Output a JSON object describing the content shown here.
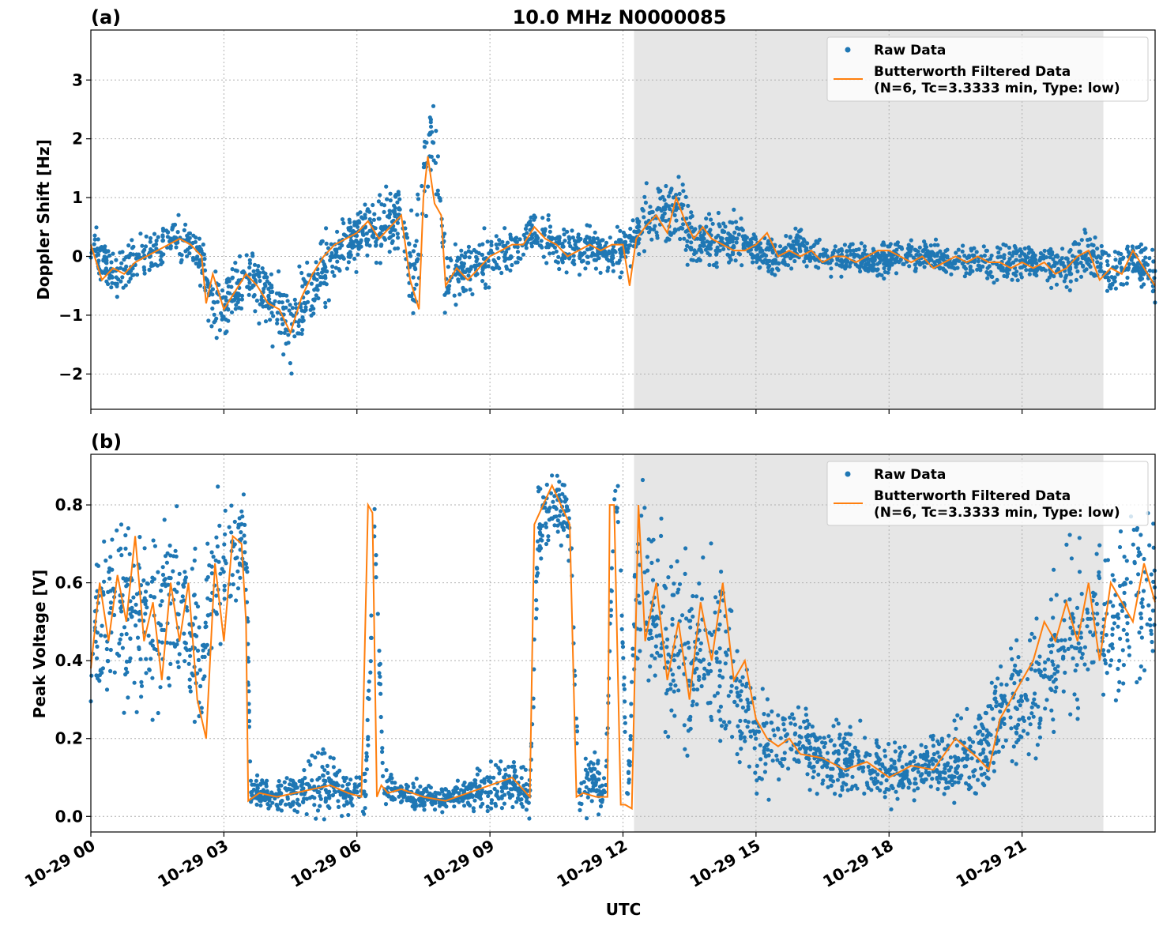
{
  "figure": {
    "title": "10.0 MHz N0000085",
    "xlabel": "UTC",
    "x_tick_labels": [
      "10-29 00",
      "10-29 03",
      "10-29 06",
      "10-29 09",
      "10-29 12",
      "10-29 15",
      "10-29 18",
      "10-29 21"
    ]
  },
  "legend": {
    "raw_label": "Raw Data",
    "filtered_label_line1": "Butterworth Filtered Data",
    "filtered_label_line2": "(N=6, Tc=3.3333 min, Type: low)"
  },
  "colors": {
    "raw": "#1f77b4",
    "filtered": "#ff7f0e",
    "shade": "#e6e6e6"
  },
  "chart_data": [
    {
      "panel": "(a)",
      "type": "scatter",
      "title": "10.0 MHz N0000085",
      "xlabel": "",
      "ylabel": "Doppler Shift [Hz]",
      "x_unit": "hours after 10-29 00:00 UTC",
      "xlim": [
        "10-29 00:00",
        "10-29 24:00"
      ],
      "ylim": [
        -2.6,
        3.85
      ],
      "yticks": [
        -2,
        -1,
        0,
        1,
        2,
        3
      ],
      "ytick_labels": [
        "−2",
        "−1",
        "0",
        "1",
        "2",
        "3"
      ],
      "grid": true,
      "legend_position": "top-right",
      "shaded_span": [
        "10-29 12:15",
        "10-29 22:50"
      ],
      "series": [
        {
          "name": "Raw Data",
          "style": "points",
          "x": [
            0,
            0.5,
            1,
            1.5,
            2,
            2.5,
            2.7,
            3,
            3.5,
            4,
            4.5,
            5,
            5.5,
            6,
            6.5,
            7,
            7.3,
            7.5,
            7.7,
            8,
            8.5,
            9,
            9.5,
            10,
            10.5,
            11,
            11.5,
            12,
            12.3,
            12.5,
            13,
            13.3,
            13.6,
            14,
            14.5,
            15,
            15.5,
            16,
            16.5,
            17,
            17.5,
            18,
            18.5,
            19,
            19.5,
            20,
            20.5,
            21,
            21.5,
            22,
            22.5,
            23,
            23.5,
            24
          ],
          "y": [
            0.2,
            -0.3,
            -0.1,
            0.1,
            0.35,
            0.0,
            -0.8,
            -0.9,
            -0.3,
            -0.7,
            -1.1,
            -0.5,
            0.0,
            0.4,
            0.5,
            0.7,
            -0.5,
            1.4,
            2.2,
            -0.3,
            -0.2,
            0.0,
            0.1,
            0.4,
            0.2,
            0.1,
            0.1,
            0.1,
            0.3,
            0.6,
            0.7,
            0.7,
            0.3,
            0.2,
            0.3,
            0.1,
            0.0,
            0.2,
            0.0,
            0.0,
            -0.1,
            0.0,
            0.0,
            0.0,
            -0.1,
            -0.1,
            -0.1,
            -0.1,
            -0.1,
            -0.2,
            0.1,
            -0.3,
            0.0,
            -0.4
          ],
          "spread": [
            0.4,
            0.4,
            0.4,
            0.4,
            0.4,
            0.4,
            0.6,
            0.6,
            0.5,
            0.6,
            0.7,
            0.6,
            0.5,
            0.5,
            0.5,
            0.7,
            0.8,
            0.9,
            0.9,
            0.6,
            0.5,
            0.4,
            0.4,
            0.4,
            0.4,
            0.35,
            0.35,
            0.4,
            0.5,
            0.6,
            0.6,
            0.6,
            0.5,
            0.4,
            0.4,
            0.35,
            0.3,
            0.3,
            0.3,
            0.3,
            0.3,
            0.3,
            0.3,
            0.3,
            0.3,
            0.3,
            0.3,
            0.3,
            0.3,
            0.35,
            0.4,
            0.4,
            0.4,
            0.5
          ]
        },
        {
          "name": "Butterworth Filtered Data (N=6, Tc=3.3333 min, Type: low)",
          "style": "line",
          "x": [
            0,
            0.25,
            0.5,
            0.75,
            1,
            1.25,
            1.5,
            1.75,
            2,
            2.25,
            2.5,
            2.6,
            2.75,
            3,
            3.25,
            3.5,
            3.75,
            4,
            4.25,
            4.5,
            4.75,
            5,
            5.25,
            5.5,
            5.75,
            6,
            6.25,
            6.5,
            6.75,
            7,
            7.2,
            7.4,
            7.5,
            7.6,
            7.75,
            7.9,
            8,
            8.25,
            8.5,
            8.75,
            9,
            9.25,
            9.5,
            9.75,
            10,
            10.25,
            10.5,
            10.75,
            11,
            11.25,
            11.5,
            11.75,
            12,
            12.15,
            12.3,
            12.5,
            12.75,
            13,
            13.2,
            13.4,
            13.6,
            13.8,
            14,
            14.25,
            14.5,
            14.75,
            15,
            15.25,
            15.5,
            15.75,
            16,
            16.25,
            16.5,
            16.75,
            17,
            17.25,
            17.5,
            17.75,
            18,
            18.25,
            18.5,
            18.75,
            19,
            19.25,
            19.5,
            19.75,
            20,
            20.25,
            20.5,
            20.75,
            21,
            21.25,
            21.5,
            21.75,
            22,
            22.25,
            22.5,
            22.75,
            23,
            23.25,
            23.5,
            23.75,
            24
          ],
          "y": [
            0.2,
            -0.4,
            -0.2,
            -0.3,
            -0.1,
            0.0,
            0.1,
            0.2,
            0.3,
            0.2,
            0.0,
            -0.8,
            -0.3,
            -0.9,
            -0.6,
            -0.3,
            -0.5,
            -0.8,
            -0.9,
            -1.3,
            -0.7,
            -0.3,
            0.0,
            0.2,
            0.3,
            0.4,
            0.6,
            0.3,
            0.5,
            0.7,
            -0.4,
            -0.9,
            1.0,
            1.7,
            0.9,
            0.7,
            -0.5,
            -0.2,
            -0.4,
            -0.2,
            0.0,
            0.1,
            0.2,
            0.2,
            0.5,
            0.3,
            0.2,
            0.0,
            0.1,
            0.2,
            0.1,
            0.2,
            0.2,
            -0.5,
            0.3,
            0.5,
            0.7,
            0.4,
            1.0,
            0.6,
            0.3,
            0.5,
            0.3,
            0.2,
            0.1,
            0.1,
            0.2,
            0.4,
            0.0,
            0.1,
            0.0,
            0.1,
            -0.1,
            0.0,
            0.0,
            -0.1,
            0.0,
            0.1,
            0.1,
            0.0,
            -0.1,
            0.0,
            -0.2,
            -0.1,
            0.0,
            -0.1,
            0.0,
            -0.1,
            -0.1,
            -0.2,
            -0.1,
            -0.2,
            -0.1,
            -0.3,
            -0.2,
            0.0,
            0.1,
            -0.4,
            -0.2,
            -0.3,
            0.1,
            -0.2,
            -0.5
          ]
        }
      ]
    },
    {
      "panel": "(b)",
      "type": "scatter",
      "title": "",
      "xlabel": "UTC",
      "ylabel": "Peak Voltage [V]",
      "x_unit": "hours after 10-29 00:00 UTC",
      "xlim": [
        "10-29 00:00",
        "10-29 24:00"
      ],
      "ylim": [
        -0.04,
        0.93
      ],
      "yticks": [
        0.0,
        0.2,
        0.4,
        0.6,
        0.8
      ],
      "ytick_labels": [
        "0.0",
        "0.2",
        "0.4",
        "0.6",
        "0.8"
      ],
      "grid": true,
      "legend_position": "top-right",
      "shaded_span": [
        "10-29 12:15",
        "10-29 22:50"
      ],
      "series": [
        {
          "name": "Raw Data",
          "style": "points",
          "x": [
            0,
            0.5,
            1,
            1.5,
            2,
            2.5,
            2.8,
            3.2,
            3.5,
            3.6,
            4,
            4.5,
            5,
            5.5,
            6,
            6.2,
            6.4,
            6.6,
            7,
            7.5,
            8,
            8.5,
            9,
            9.5,
            9.9,
            10.1,
            10.5,
            10.8,
            11,
            11.3,
            11.6,
            11.8,
            11.9,
            12.1,
            12.3,
            12.5,
            12.8,
            13,
            13.5,
            14,
            14.5,
            15,
            15.5,
            16,
            16.5,
            17,
            17.5,
            18,
            18.5,
            19,
            19.5,
            20,
            20.5,
            21,
            21.5,
            22,
            22.5,
            23,
            23.5,
            24
          ],
          "y": [
            0.45,
            0.55,
            0.5,
            0.5,
            0.55,
            0.4,
            0.6,
            0.7,
            0.7,
            0.06,
            0.05,
            0.06,
            0.07,
            0.08,
            0.06,
            0.07,
            0.75,
            0.08,
            0.06,
            0.05,
            0.04,
            0.06,
            0.08,
            0.08,
            0.06,
            0.75,
            0.8,
            0.75,
            0.06,
            0.1,
            0.05,
            0.8,
            0.8,
            0.03,
            0.6,
            0.55,
            0.5,
            0.45,
            0.4,
            0.45,
            0.35,
            0.2,
            0.2,
            0.18,
            0.15,
            0.15,
            0.13,
            0.12,
            0.12,
            0.13,
            0.15,
            0.15,
            0.25,
            0.3,
            0.35,
            0.45,
            0.5,
            0.5,
            0.55,
            0.6
          ],
          "spread": [
            0.25,
            0.25,
            0.25,
            0.25,
            0.25,
            0.2,
            0.2,
            0.15,
            0.15,
            0.04,
            0.04,
            0.05,
            0.08,
            0.08,
            0.05,
            0.1,
            0.1,
            0.06,
            0.04,
            0.03,
            0.03,
            0.05,
            0.07,
            0.07,
            0.05,
            0.12,
            0.1,
            0.1,
            0.05,
            0.08,
            0.04,
            0.08,
            0.08,
            0.03,
            0.25,
            0.25,
            0.25,
            0.25,
            0.25,
            0.25,
            0.2,
            0.15,
            0.12,
            0.1,
            0.09,
            0.09,
            0.08,
            0.08,
            0.08,
            0.08,
            0.09,
            0.1,
            0.15,
            0.18,
            0.2,
            0.22,
            0.22,
            0.22,
            0.22,
            0.22
          ]
        },
        {
          "name": "Butterworth Filtered Data (N=6, Tc=3.3333 min, Type: low)",
          "style": "line",
          "x": [
            0,
            0.2,
            0.4,
            0.6,
            0.8,
            1,
            1.2,
            1.4,
            1.6,
            1.8,
            2,
            2.2,
            2.4,
            2.6,
            2.8,
            3,
            3.2,
            3.4,
            3.5,
            3.55,
            3.8,
            4.2,
            4.6,
            5,
            5.4,
            5.8,
            6.1,
            6.25,
            6.35,
            6.45,
            6.55,
            6.7,
            7,
            7.5,
            8,
            8.5,
            9,
            9.5,
            9.9,
            10.0,
            10.2,
            10.4,
            10.6,
            10.8,
            10.95,
            11.1,
            11.4,
            11.65,
            11.7,
            11.8,
            11.95,
            12.05,
            12.2,
            12.35,
            12.5,
            12.75,
            13,
            13.25,
            13.5,
            13.75,
            14,
            14.25,
            14.5,
            14.75,
            15,
            15.25,
            15.5,
            15.75,
            16,
            16.5,
            17,
            17.5,
            18,
            18.5,
            19,
            19.5,
            20,
            20.25,
            20.5,
            20.75,
            21,
            21.25,
            21.5,
            21.75,
            22,
            22.25,
            22.5,
            22.75,
            23,
            23.25,
            23.5,
            23.75,
            24
          ],
          "y": [
            0.38,
            0.6,
            0.45,
            0.62,
            0.5,
            0.72,
            0.45,
            0.55,
            0.35,
            0.6,
            0.45,
            0.6,
            0.3,
            0.2,
            0.65,
            0.45,
            0.72,
            0.7,
            0.5,
            0.04,
            0.06,
            0.05,
            0.06,
            0.07,
            0.08,
            0.06,
            0.05,
            0.8,
            0.78,
            0.05,
            0.08,
            0.06,
            0.07,
            0.05,
            0.04,
            0.06,
            0.08,
            0.1,
            0.05,
            0.75,
            0.8,
            0.85,
            0.8,
            0.75,
            0.05,
            0.06,
            0.05,
            0.05,
            0.8,
            0.8,
            0.03,
            0.03,
            0.02,
            0.8,
            0.45,
            0.6,
            0.35,
            0.5,
            0.3,
            0.55,
            0.4,
            0.6,
            0.35,
            0.4,
            0.25,
            0.2,
            0.18,
            0.2,
            0.16,
            0.15,
            0.12,
            0.14,
            0.1,
            0.13,
            0.12,
            0.2,
            0.15,
            0.12,
            0.25,
            0.3,
            0.35,
            0.4,
            0.5,
            0.45,
            0.55,
            0.45,
            0.6,
            0.4,
            0.6,
            0.55,
            0.5,
            0.65,
            0.55
          ]
        }
      ]
    }
  ]
}
